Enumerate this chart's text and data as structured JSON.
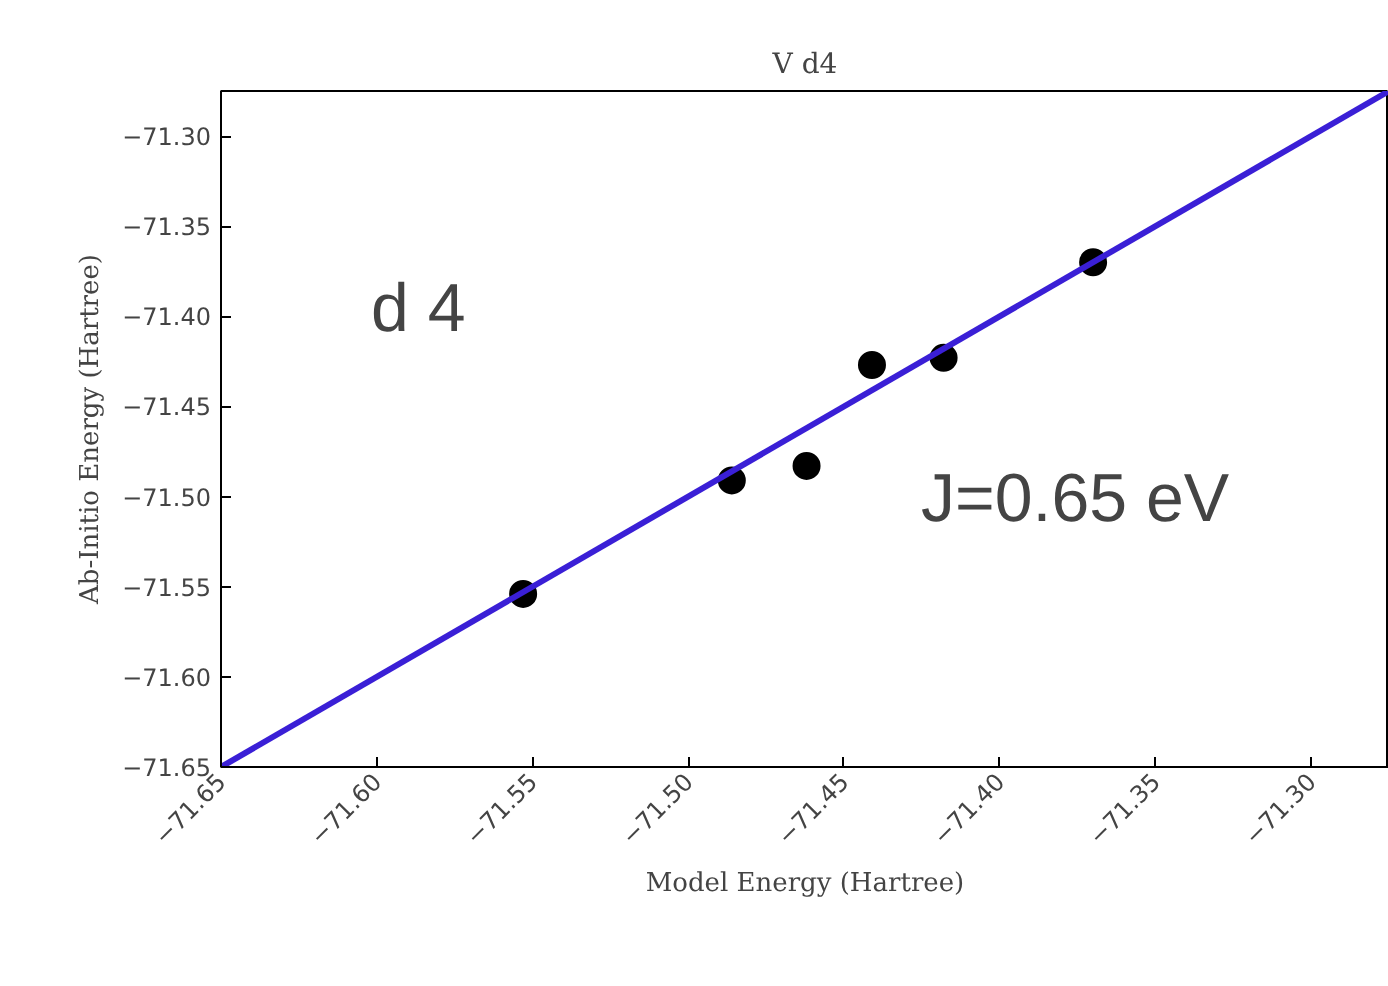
{
  "chart_data": {
    "type": "scatter",
    "title": "V d4",
    "xlabel": "Model Energy (Hartree)",
    "ylabel": "Ab-Initio Energy (Hartree)",
    "x": [
      -71.553,
      -71.486,
      -71.462,
      -71.441,
      -71.418,
      -71.37
    ],
    "series": [
      {
        "marker": "circle",
        "color": "#000000",
        "values": [
          -71.554,
          -71.491,
          -71.483,
          -71.427,
          -71.423,
          -71.37
        ]
      },
      {
        "type": "line",
        "color": "#3a1fd6",
        "x": [
          -71.65,
          -71.275
        ],
        "values": [
          -71.65,
          -71.275
        ]
      }
    ],
    "xlim": [
      -71.65,
      -71.275
    ],
    "ylim": [
      -71.65,
      -71.275
    ],
    "xticks": [
      {
        "value": -71.65,
        "label": "−71.65"
      },
      {
        "value": -71.6,
        "label": "−71.60"
      },
      {
        "value": -71.55,
        "label": "−71.55"
      },
      {
        "value": -71.5,
        "label": "−71.50"
      },
      {
        "value": -71.45,
        "label": "−71.45"
      },
      {
        "value": -71.4,
        "label": "−71.40"
      },
      {
        "value": -71.35,
        "label": "−71.35"
      },
      {
        "value": -71.3,
        "label": "−71.30"
      }
    ],
    "yticks": [
      {
        "value": -71.65,
        "label": "−71.65"
      },
      {
        "value": -71.6,
        "label": "−71.60"
      },
      {
        "value": -71.55,
        "label": "−71.55"
      },
      {
        "value": -71.5,
        "label": "−71.50"
      },
      {
        "value": -71.45,
        "label": "−71.45"
      },
      {
        "value": -71.4,
        "label": "−71.40"
      },
      {
        "value": -71.35,
        "label": "−71.35"
      },
      {
        "value": -71.3,
        "label": "−71.30"
      }
    ],
    "annotations": [
      "d 4",
      "J=0.65 eV"
    ],
    "grid": false
  }
}
